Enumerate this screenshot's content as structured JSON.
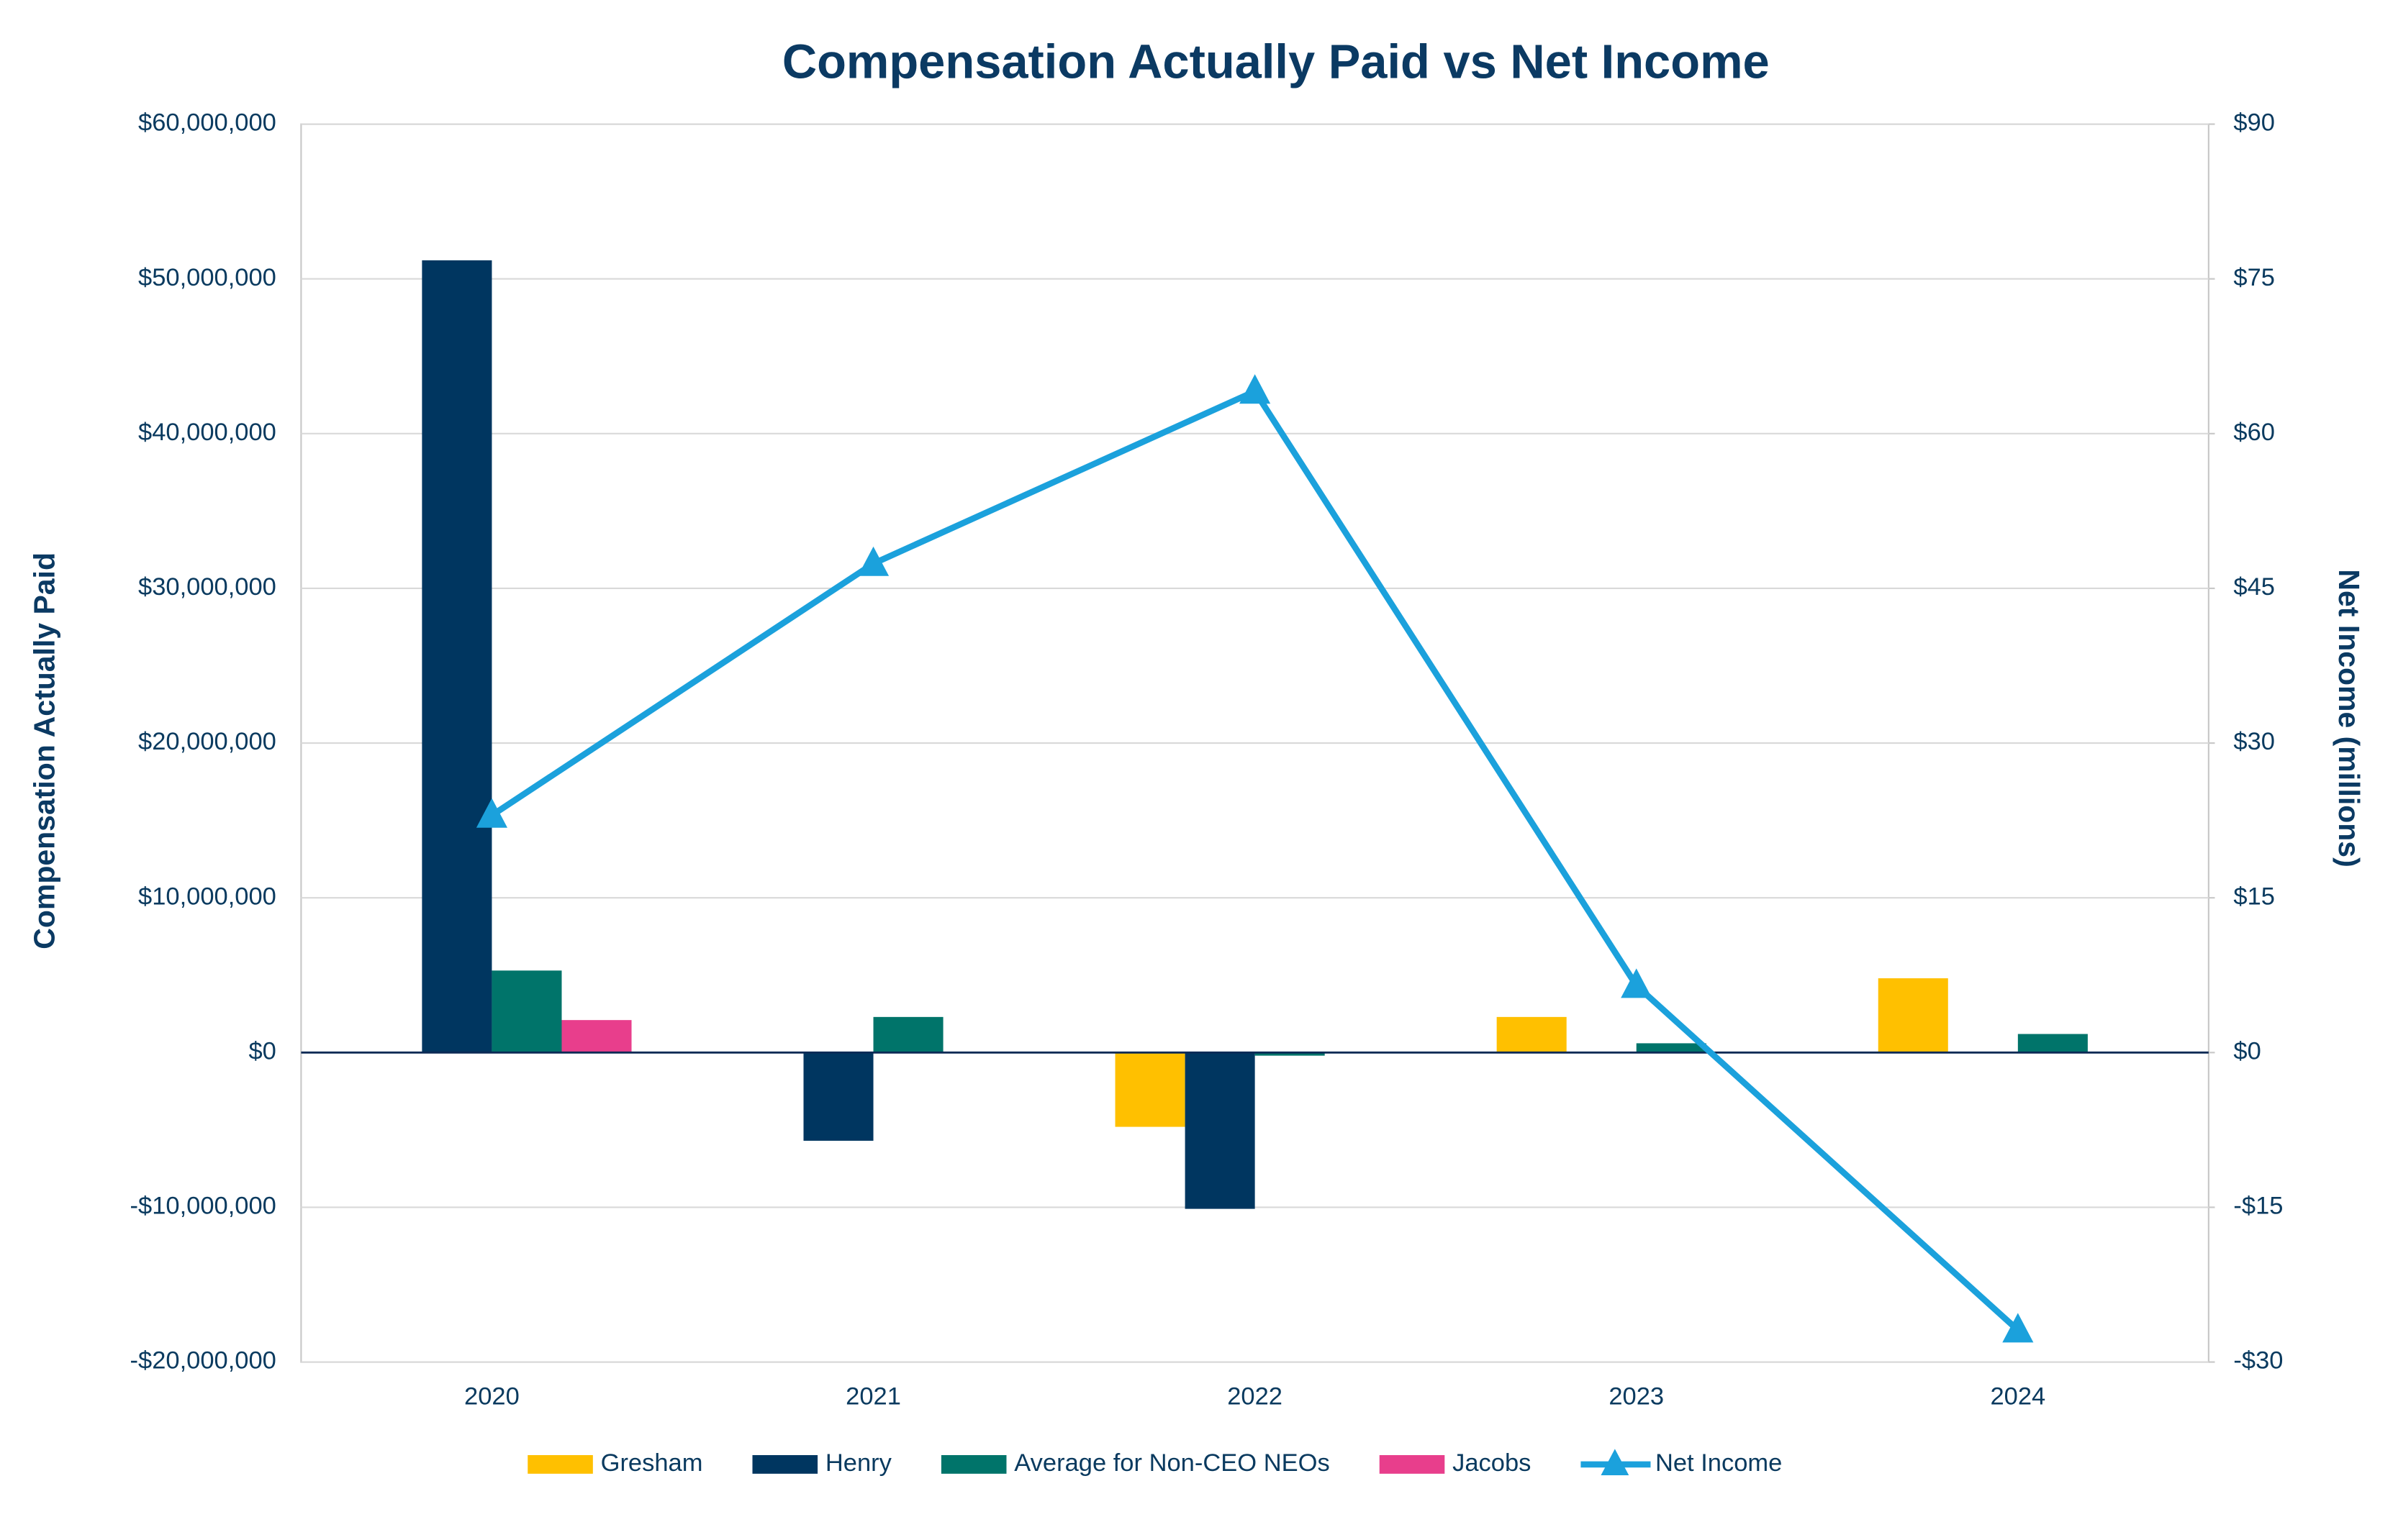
{
  "chart_data": {
    "type": "bar",
    "title": "Compensation Actually Paid vs Net Income",
    "y_label": "Compensation Actually Paid",
    "y2_label": "Net Income (millions)",
    "categories": [
      "2020",
      "2021",
      "2022",
      "2023",
      "2024"
    ],
    "series": [
      {
        "name": "Gresham",
        "color": "#FFC000",
        "values": [
          null,
          null,
          -4800000,
          2300000,
          4800000
        ]
      },
      {
        "name": "Henry",
        "color": "#003660",
        "values": [
          51200000,
          -5700000,
          -10100000,
          null,
          null
        ]
      },
      {
        "name": "Average for Non-CEO NEOs",
        "color": "#00746A",
        "values": [
          5300000,
          2300000,
          -200000,
          600000,
          1200000
        ]
      },
      {
        "name": "Jacobs",
        "color": "#E83E8C",
        "values": [
          2100000,
          null,
          null,
          null,
          null
        ]
      },
      {
        "name": "Net Income",
        "color": "#1BA1DC",
        "type": "line",
        "axis": "y2",
        "values": [
          23,
          47.4,
          64.1,
          6.5,
          -26.9
        ]
      }
    ],
    "ylim": [
      -20000000,
      60000000
    ],
    "yticks": [
      {
        "value": -20000000,
        "label": "-$20,000,000"
      },
      {
        "value": -10000000,
        "label": "-$10,000,000"
      },
      {
        "value": 0,
        "label": "$0"
      },
      {
        "value": 10000000,
        "label": "$10,000,000"
      },
      {
        "value": 20000000,
        "label": "$20,000,000"
      },
      {
        "value": 30000000,
        "label": "$30,000,000"
      },
      {
        "value": 40000000,
        "label": "$40,000,000"
      },
      {
        "value": 50000000,
        "label": "$50,000,000"
      },
      {
        "value": 60000000,
        "label": "$60,000,000"
      }
    ],
    "y2lim": [
      -30,
      90
    ],
    "y2ticks": [
      {
        "value": -30,
        "label": "-$30"
      },
      {
        "value": -15,
        "label": "-$15"
      },
      {
        "value": 0,
        "label": "$0"
      },
      {
        "value": 15,
        "label": "$15"
      },
      {
        "value": 30,
        "label": "$30"
      },
      {
        "value": 45,
        "label": "$45"
      },
      {
        "value": 60,
        "label": "$60"
      },
      {
        "value": 75,
        "label": "$75"
      },
      {
        "value": 90,
        "label": "$90"
      }
    ],
    "grid": true,
    "legend": "bottom"
  }
}
